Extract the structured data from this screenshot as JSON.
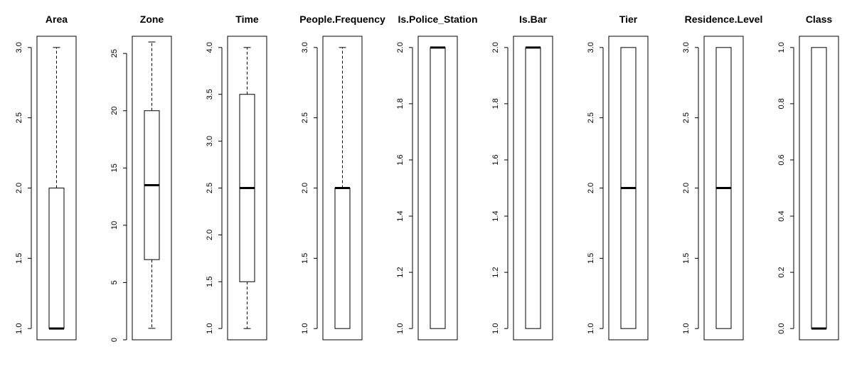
{
  "chart_data": [
    {
      "type": "box",
      "title": "Area",
      "ylim": [
        0.92,
        3.08
      ],
      "ticks": [
        1.0,
        1.5,
        2.0,
        2.5,
        3.0
      ],
      "tick_labels": [
        "1.0",
        "1.5",
        "2.0",
        "2.5",
        "3.0"
      ],
      "min": 1,
      "q1": 1,
      "median": 1,
      "q3": 2,
      "max": 3
    },
    {
      "type": "box",
      "title": "Zone",
      "ylim": [
        0,
        26.5
      ],
      "ticks": [
        0,
        5,
        10,
        15,
        20,
        25
      ],
      "tick_labels": [
        "0",
        "5",
        "10",
        "15",
        "20",
        "25"
      ],
      "min": 1,
      "q1": 7,
      "median": 13.5,
      "q3": 20,
      "max": 26
    },
    {
      "type": "box",
      "title": "Time",
      "ylim": [
        0.88,
        4.12
      ],
      "ticks": [
        1.0,
        1.5,
        2.0,
        2.5,
        3.0,
        3.5,
        4.0
      ],
      "tick_labels": [
        "1.0",
        "1.5",
        "2.0",
        "2.5",
        "3.0",
        "3.5",
        "4.0"
      ],
      "min": 1,
      "q1": 1.5,
      "median": 2.5,
      "q3": 3.5,
      "max": 4
    },
    {
      "type": "box",
      "title": "People.Frequency",
      "ylim": [
        0.92,
        3.08
      ],
      "ticks": [
        1.0,
        1.5,
        2.0,
        2.5,
        3.0
      ],
      "tick_labels": [
        "1.0",
        "1.5",
        "2.0",
        "2.5",
        "3.0"
      ],
      "min": 1,
      "q1": 1,
      "median": 2,
      "q3": 2,
      "max": 3
    },
    {
      "type": "box",
      "title": "Is.Police_Station",
      "ylim": [
        0.96,
        2.04
      ],
      "ticks": [
        1.0,
        1.2,
        1.4,
        1.6,
        1.8,
        2.0
      ],
      "tick_labels": [
        "1.0",
        "1.2",
        "1.4",
        "1.6",
        "1.8",
        "2.0"
      ],
      "min": 1,
      "q1": 1,
      "median": 2,
      "q3": 2,
      "max": 2
    },
    {
      "type": "box",
      "title": "Is.Bar",
      "ylim": [
        0.96,
        2.04
      ],
      "ticks": [
        1.0,
        1.2,
        1.4,
        1.6,
        1.8,
        2.0
      ],
      "tick_labels": [
        "1.0",
        "1.2",
        "1.4",
        "1.6",
        "1.8",
        "2.0"
      ],
      "min": 1,
      "q1": 1,
      "median": 2,
      "q3": 2,
      "max": 2
    },
    {
      "type": "box",
      "title": "Tier",
      "ylim": [
        0.92,
        3.08
      ],
      "ticks": [
        1.0,
        1.5,
        2.0,
        2.5,
        3.0
      ],
      "tick_labels": [
        "1.0",
        "1.5",
        "2.0",
        "2.5",
        "3.0"
      ],
      "min": 1,
      "q1": 1,
      "median": 2,
      "q3": 3,
      "max": 3
    },
    {
      "type": "box",
      "title": "Residence.Level",
      "ylim": [
        0.92,
        3.08
      ],
      "ticks": [
        1.0,
        1.5,
        2.0,
        2.5,
        3.0
      ],
      "tick_labels": [
        "1.0",
        "1.5",
        "2.0",
        "2.5",
        "3.0"
      ],
      "min": 1,
      "q1": 1,
      "median": 2,
      "q3": 3,
      "max": 3
    },
    {
      "type": "box",
      "title": "Class",
      "ylim": [
        -0.04,
        1.04
      ],
      "ticks": [
        0.0,
        0.2,
        0.4,
        0.6,
        0.8,
        1.0
      ],
      "tick_labels": [
        "0.0",
        "0.2",
        "0.4",
        "0.6",
        "0.8",
        "1.0"
      ],
      "min": 0,
      "q1": 0,
      "median": 0,
      "q3": 1,
      "max": 1
    }
  ]
}
